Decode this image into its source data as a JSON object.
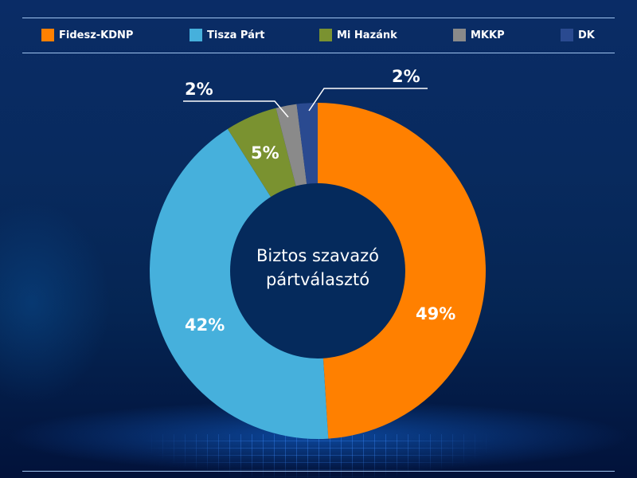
{
  "legend": [
    {
      "label": "Fidesz-KDNP",
      "color": "#ff8000"
    },
    {
      "label": "Tisza Párt",
      "color": "#46b0dc"
    },
    {
      "label": "Mi Hazánk",
      "color": "#7a9230"
    },
    {
      "label": "MKKP",
      "color": "#8a8a8a"
    },
    {
      "label": "DK",
      "color": "#2a4a90"
    }
  ],
  "center_label": {
    "line1": "Biztos szavazó",
    "line2": "pártválasztó"
  },
  "slice_labels": {
    "fidesz": "49%",
    "tisza": "42%",
    "mi_hazank": "5%",
    "mkkp": "2%",
    "dk": "2%"
  },
  "chart_data": {
    "type": "pie",
    "variant": "donut",
    "title": "Biztos szavazó pártválasztó",
    "categories": [
      "Fidesz-KDNP",
      "Tisza Párt",
      "Mi Hazánk",
      "MKKP",
      "DK"
    ],
    "values": [
      49,
      42,
      5,
      2,
      2
    ],
    "unit": "%",
    "colors": [
      "#ff8000",
      "#46b0dc",
      "#7a9230",
      "#8a8a8a",
      "#2a4a90"
    ],
    "legend_position": "top",
    "start_angle_deg": 0,
    "direction": "clockwise"
  }
}
